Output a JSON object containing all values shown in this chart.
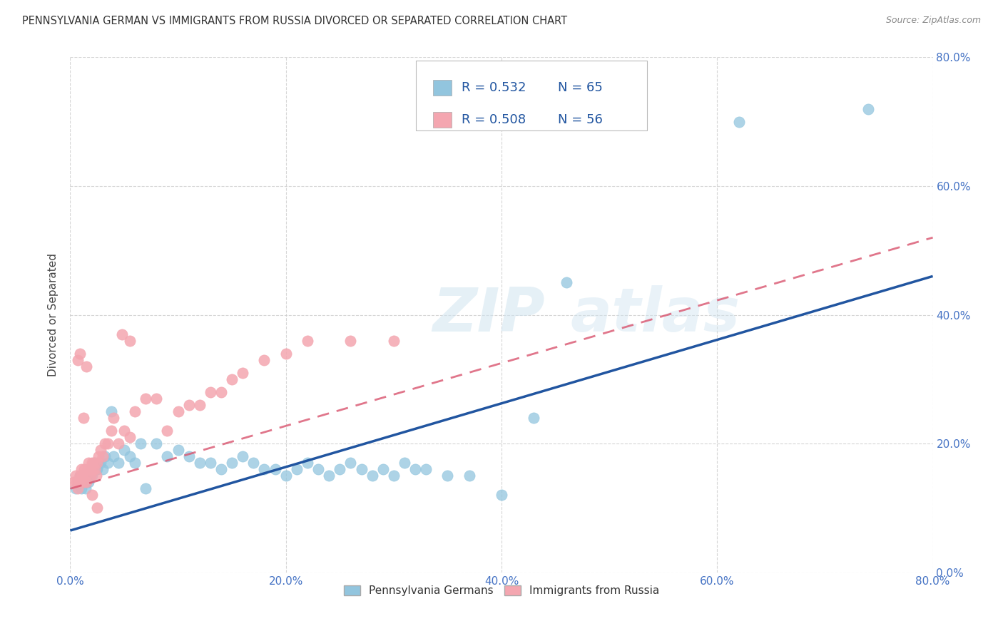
{
  "title": "PENNSYLVANIA GERMAN VS IMMIGRANTS FROM RUSSIA DIVORCED OR SEPARATED CORRELATION CHART",
  "source": "Source: ZipAtlas.com",
  "ylabel": "Divorced or Separated",
  "xlim": [
    0.0,
    0.8
  ],
  "ylim": [
    0.0,
    0.8
  ],
  "xtick_positions": [
    0.0,
    0.2,
    0.4,
    0.6,
    0.8
  ],
  "xtick_labels": [
    "0.0%",
    "20.0%",
    "40.0%",
    "60.0%",
    "80.0%"
  ],
  "ytick_positions": [
    0.0,
    0.2,
    0.4,
    0.6,
    0.8
  ],
  "ytick_labels": [
    "0.0%",
    "20.0%",
    "40.0%",
    "60.0%",
    "80.0%"
  ],
  "blue_color": "#92c5de",
  "pink_color": "#f4a6b0",
  "blue_line_color": "#2155a0",
  "pink_line_color": "#d9546e",
  "grid_color": "#cccccc",
  "legend_R_blue": "R = 0.532",
  "legend_N_blue": "N = 65",
  "legend_R_pink": "R = 0.508",
  "legend_N_pink": "N = 56",
  "legend_label_blue": "Pennsylvania Germans",
  "legend_label_pink": "Immigrants from Russia",
  "blue_scatter_x": [
    0.005,
    0.007,
    0.008,
    0.009,
    0.01,
    0.01,
    0.011,
    0.012,
    0.013,
    0.014,
    0.015,
    0.016,
    0.017,
    0.018,
    0.019,
    0.02,
    0.022,
    0.024,
    0.025,
    0.026,
    0.028,
    0.03,
    0.032,
    0.035,
    0.038,
    0.04,
    0.045,
    0.05,
    0.055,
    0.06,
    0.065,
    0.07,
    0.08,
    0.09,
    0.1,
    0.11,
    0.12,
    0.13,
    0.14,
    0.15,
    0.16,
    0.17,
    0.18,
    0.19,
    0.2,
    0.21,
    0.22,
    0.23,
    0.24,
    0.25,
    0.26,
    0.27,
    0.28,
    0.29,
    0.3,
    0.31,
    0.32,
    0.33,
    0.35,
    0.37,
    0.4,
    0.43,
    0.46,
    0.62,
    0.74
  ],
  "blue_scatter_y": [
    0.13,
    0.14,
    0.14,
    0.15,
    0.13,
    0.15,
    0.14,
    0.15,
    0.14,
    0.13,
    0.14,
    0.15,
    0.14,
    0.15,
    0.16,
    0.15,
    0.17,
    0.16,
    0.16,
    0.17,
    0.17,
    0.16,
    0.18,
    0.17,
    0.25,
    0.18,
    0.17,
    0.19,
    0.18,
    0.17,
    0.2,
    0.13,
    0.2,
    0.18,
    0.19,
    0.18,
    0.17,
    0.17,
    0.16,
    0.17,
    0.18,
    0.17,
    0.16,
    0.16,
    0.15,
    0.16,
    0.17,
    0.16,
    0.15,
    0.16,
    0.17,
    0.16,
    0.15,
    0.16,
    0.15,
    0.17,
    0.16,
    0.16,
    0.15,
    0.15,
    0.12,
    0.24,
    0.45,
    0.7,
    0.72
  ],
  "pink_scatter_x": [
    0.003,
    0.005,
    0.006,
    0.007,
    0.008,
    0.009,
    0.01,
    0.011,
    0.012,
    0.013,
    0.014,
    0.015,
    0.016,
    0.017,
    0.018,
    0.019,
    0.02,
    0.021,
    0.022,
    0.023,
    0.024,
    0.025,
    0.026,
    0.028,
    0.03,
    0.032,
    0.035,
    0.038,
    0.04,
    0.045,
    0.05,
    0.055,
    0.06,
    0.07,
    0.08,
    0.09,
    0.1,
    0.11,
    0.12,
    0.13,
    0.14,
    0.15,
    0.16,
    0.18,
    0.2,
    0.22,
    0.26,
    0.3,
    0.048,
    0.055,
    0.007,
    0.009,
    0.012,
    0.015,
    0.02,
    0.025
  ],
  "pink_scatter_y": [
    0.14,
    0.15,
    0.14,
    0.13,
    0.14,
    0.15,
    0.16,
    0.15,
    0.14,
    0.16,
    0.15,
    0.14,
    0.16,
    0.17,
    0.16,
    0.15,
    0.17,
    0.16,
    0.17,
    0.16,
    0.15,
    0.17,
    0.18,
    0.19,
    0.18,
    0.2,
    0.2,
    0.22,
    0.24,
    0.2,
    0.22,
    0.21,
    0.25,
    0.27,
    0.27,
    0.22,
    0.25,
    0.26,
    0.26,
    0.28,
    0.28,
    0.3,
    0.31,
    0.33,
    0.34,
    0.36,
    0.36,
    0.36,
    0.37,
    0.36,
    0.33,
    0.34,
    0.24,
    0.32,
    0.12,
    0.1
  ],
  "blue_trend_x": [
    0.0,
    0.8
  ],
  "blue_trend_y": [
    0.065,
    0.46
  ],
  "pink_trend_x": [
    0.0,
    0.8
  ],
  "pink_trend_y": [
    0.13,
    0.52
  ],
  "watermark_line1": "ZIP",
  "watermark_line2": "atlas",
  "bg_color": "#ffffff"
}
